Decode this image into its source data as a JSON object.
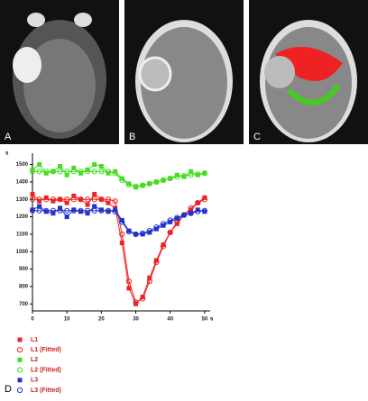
{
  "panels": [
    "A",
    "B",
    "C"
  ],
  "chart_data": {
    "type": "line",
    "panel_label": "D",
    "y_label": "s",
    "x_label": "s",
    "x": [
      0,
      2,
      4,
      6,
      8,
      10,
      12,
      14,
      16,
      18,
      20,
      22,
      24,
      26,
      28,
      30,
      32,
      34,
      36,
      38,
      40,
      42,
      44,
      46,
      48,
      50
    ],
    "xlim": [
      0,
      51.6
    ],
    "xticks": [
      0,
      10,
      20,
      30,
      40,
      50
    ],
    "ylim": [
      660,
      1565
    ],
    "yticks": [
      700,
      800,
      900,
      1000,
      1100,
      1200,
      1300,
      1400,
      1500
    ],
    "series": [
      {
        "name": "L1",
        "color": "#ee2222",
        "marker": "square",
        "values": [
          1330,
          1290,
          1310,
          1290,
          1300,
          1280,
          1320,
          1300,
          1270,
          1330,
          1300,
          1280,
          1250,
          1050,
          790,
          700,
          740,
          850,
          950,
          1040,
          1110,
          1160,
          1210,
          1240,
          1280,
          1310
        ]
      },
      {
        "name": "L1 (Fitted)",
        "color": "#ee2222",
        "marker": "circle-open",
        "values": [
          1300,
          1300,
          1300,
          1300,
          1300,
          1300,
          1300,
          1300,
          1300,
          1300,
          1300,
          1300,
          1290,
          1100,
          830,
          710,
          730,
          830,
          940,
          1030,
          1110,
          1170,
          1210,
          1250,
          1280,
          1300
        ]
      },
      {
        "name": "L2",
        "color": "#44dd22",
        "marker": "square",
        "values": [
          1470,
          1500,
          1450,
          1460,
          1490,
          1440,
          1480,
          1450,
          1470,
          1500,
          1490,
          1450,
          1460,
          1420,
          1390,
          1370,
          1380,
          1390,
          1400,
          1410,
          1420,
          1440,
          1430,
          1460,
          1440,
          1450
        ]
      },
      {
        "name": "L2 (Fitted)",
        "color": "#44dd22",
        "marker": "circle-open",
        "values": [
          1460,
          1460,
          1460,
          1460,
          1460,
          1460,
          1460,
          1460,
          1460,
          1460,
          1460,
          1460,
          1450,
          1410,
          1385,
          1375,
          1380,
          1390,
          1400,
          1410,
          1420,
          1430,
          1435,
          1440,
          1445,
          1450
        ]
      },
      {
        "name": "L3",
        "color": "#2233cc",
        "marker": "square",
        "values": [
          1240,
          1260,
          1230,
          1220,
          1250,
          1200,
          1240,
          1230,
          1220,
          1260,
          1240,
          1230,
          1240,
          1180,
          1120,
          1100,
          1100,
          1110,
          1130,
          1150,
          1170,
          1190,
          1210,
          1220,
          1240,
          1230
        ]
      },
      {
        "name": "L3 (Fitted)",
        "color": "#2233cc",
        "marker": "circle-open",
        "values": [
          1235,
          1235,
          1235,
          1235,
          1235,
          1235,
          1235,
          1235,
          1235,
          1235,
          1235,
          1235,
          1230,
          1170,
          1115,
          1100,
          1105,
          1120,
          1140,
          1160,
          1180,
          1195,
          1210,
          1220,
          1230,
          1235
        ]
      }
    ]
  }
}
